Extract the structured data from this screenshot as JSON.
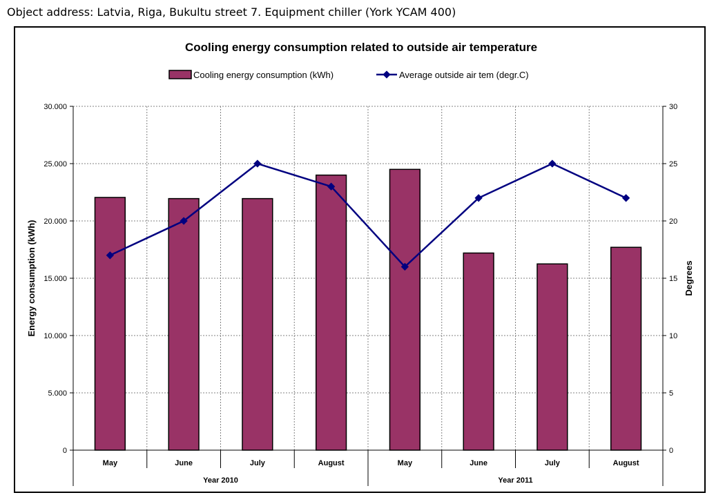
{
  "header": {
    "text": "Object address: Latvia, Riga, Bukultu street 7. Equipment chiller (York YCAM 400)"
  },
  "colors": {
    "bar": "#993366",
    "line": "#000080",
    "grid": "#808080"
  },
  "chart_data": {
    "type": "bar",
    "title": "Cooling energy consumption related to outside air temperature",
    "ylabel": "Energy consumption (kWh)",
    "y2label": "Degrees",
    "ylim": [
      0,
      30000
    ],
    "y2lim": [
      0,
      30
    ],
    "yticks": [
      "0",
      "5.000",
      "10.000",
      "15.000",
      "20.000",
      "25.000",
      "30.000"
    ],
    "y2ticks": [
      "0",
      "5",
      "10",
      "15",
      "20",
      "25",
      "30"
    ],
    "categories": [
      "May",
      "June",
      "July",
      "August",
      "May",
      "June",
      "July",
      "August"
    ],
    "groups": [
      {
        "label": "Year 2010",
        "span": [
          0,
          3
        ]
      },
      {
        "label": "Year 2011",
        "span": [
          4,
          7
        ]
      }
    ],
    "series": [
      {
        "name": "Cooling energy consumption (kWh)",
        "type": "bar",
        "axis": "left",
        "values": [
          22050,
          21950,
          21950,
          24000,
          24500,
          17200,
          16250,
          17700
        ]
      },
      {
        "name": "Average outside air tem (degr.C)",
        "type": "line",
        "axis": "right",
        "values": [
          17,
          20,
          25,
          23,
          16,
          22,
          25,
          22
        ]
      }
    ],
    "grid": true,
    "legend": "top"
  }
}
